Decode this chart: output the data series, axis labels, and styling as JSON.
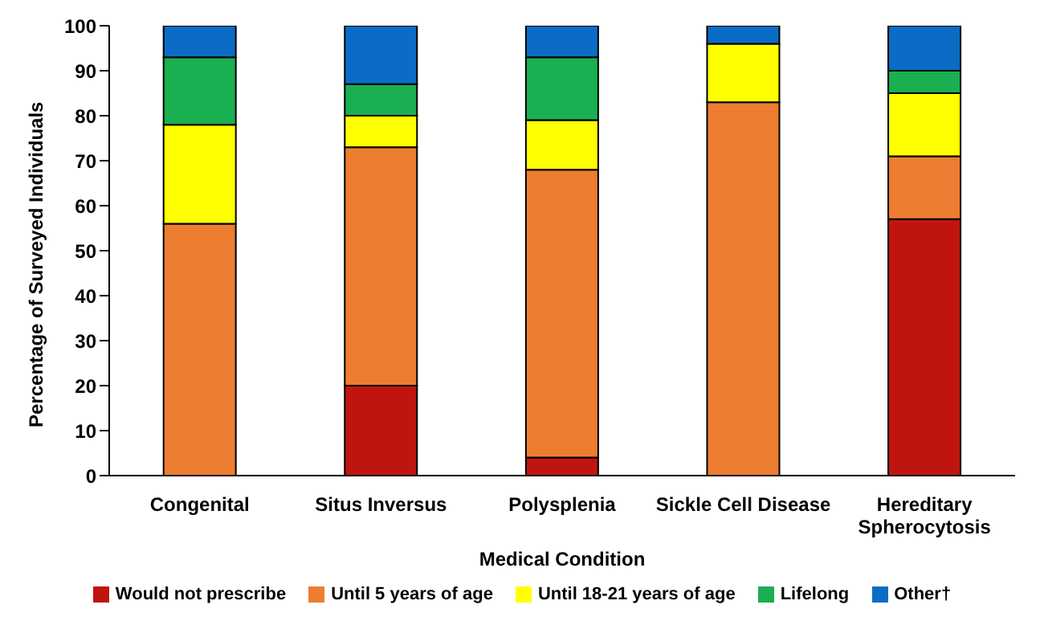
{
  "chart_data": {
    "type": "bar",
    "stacked": true,
    "xlabel": "Medical Condition",
    "ylabel": "Percentage of Surveyed Individuals",
    "categories": [
      "Congenital",
      "Situs Inversus",
      "Polysplenia",
      "Sickle Cell Disease",
      "Hereditary Spherocytosis"
    ],
    "series": [
      {
        "name": "Would not prescribe",
        "color": "#c0150f",
        "values": [
          0,
          20,
          4,
          0,
          57
        ]
      },
      {
        "name": "Until 5 years of age",
        "color": "#ed7d31",
        "values": [
          56,
          53,
          64,
          83,
          14
        ]
      },
      {
        "name": "Until 18-21 years of age",
        "color": "#ffff00",
        "values": [
          22,
          7,
          11,
          13,
          14
        ]
      },
      {
        "name": "Lifelong",
        "color": "#1aaf50",
        "values": [
          15,
          7,
          14,
          0,
          5
        ]
      },
      {
        "name": "Other†",
        "color": "#0a6cc4",
        "values": [
          7,
          13,
          7,
          4,
          10
        ]
      }
    ],
    "ylim": [
      0,
      100
    ],
    "yticks": [
      0,
      10,
      20,
      30,
      40,
      50,
      60,
      70,
      80,
      90,
      100
    ],
    "grid": false,
    "legend": "bottom"
  }
}
